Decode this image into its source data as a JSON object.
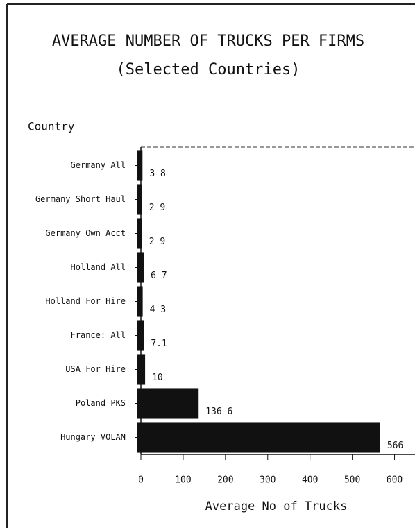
{
  "chart_data": {
    "type": "bar",
    "orientation": "horizontal",
    "title": "AVERAGE NUMBER OF TRUCKS PER FIRMS",
    "subtitle": "(Selected Countries)",
    "y_label": "Country",
    "x_label": "Average No of Trucks",
    "categories": [
      "Germany All",
      "Germany Short Haul",
      "Germany Own Acct",
      "Holland All",
      "Holland For Hire",
      "France: All",
      "USA For Hire",
      "Poland PKS",
      "Hungary VOLAN"
    ],
    "values": [
      3.8,
      2.9,
      2.9,
      6.7,
      4.3,
      7.1,
      10,
      136.6,
      566
    ],
    "value_labels": [
      "3 8",
      "2 9",
      "2 9",
      "6 7",
      "4 3",
      "7.1",
      "10",
      "136 6",
      "566"
    ],
    "color": "#111111",
    "xlim": [
      0,
      650
    ],
    "xticks": [
      0,
      100,
      200,
      300,
      400,
      500,
      600
    ]
  }
}
